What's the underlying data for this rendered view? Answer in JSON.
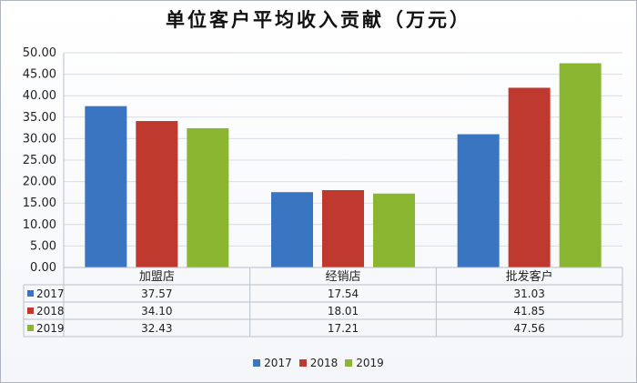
{
  "chart_data": {
    "type": "bar",
    "title": "单位客户平均收入贡献（万元）",
    "categories": [
      "加盟店",
      "经销店",
      "批发客户"
    ],
    "series": [
      {
        "name": "2017",
        "values": [
          37.57,
          17.54,
          31.03
        ],
        "color": "#3a75c1"
      },
      {
        "name": "2018",
        "values": [
          34.1,
          18.01,
          41.85
        ],
        "color": "#c0392f"
      },
      {
        "name": "2019",
        "values": [
          32.43,
          17.21,
          47.56
        ],
        "color": "#8ab632"
      }
    ],
    "yticks": [
      "0.00",
      "5.00",
      "10.00",
      "15.00",
      "20.00",
      "25.00",
      "30.00",
      "35.00",
      "40.00",
      "45.00",
      "50.00"
    ],
    "ylim": [
      0,
      50
    ],
    "grid": true,
    "legend_position": "bottom",
    "data_table": true
  }
}
